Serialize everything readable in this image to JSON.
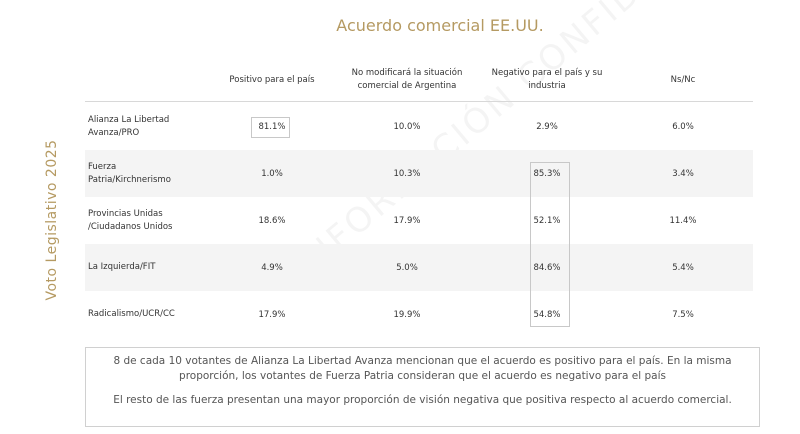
{
  "title": "Acuerdo comercial EE.UU.",
  "side_label": "Voto Legislativo 2025",
  "watermark": "INFORMACIÓN CONFIDENCIAL",
  "table": {
    "header": [
      "Positivo para el país",
      "No modificará la situación comercial de Argentina",
      "Negativo para el país y su industria",
      "Ns/Nc"
    ],
    "rows": [
      [
        "Alianza La Libertad Avanza/PRO",
        "81.1%",
        "10.0%",
        "2.9%",
        "6.0%"
      ],
      [
        "Fuerza Patria/Kirchnerismo",
        "1.0%",
        "10.3%",
        "85.3%",
        "3.4%"
      ],
      [
        "Provincias Unidas /Ciudadanos Unidos",
        "18.6%",
        "17.9%",
        "52.1%",
        "11.4%"
      ],
      [
        "La Izquierda/FIT",
        "4.9%",
        "5.0%",
        "84.6%",
        "5.4%"
      ],
      [
        "Radicalismo/UCR/CC",
        "17.9%",
        "19.9%",
        "54.8%",
        "7.5%"
      ]
    ]
  },
  "note": {
    "paragraphs": [
      "8 de cada 10 votantes de Alianza La Libertad Avanza mencionan que el acuerdo es positivo para el país. En la misma proporción, los votantes de Fuerza Patria consideran que el acuerdo es negativo para el país",
      "El resto de las fuerza presentan una mayor proporción de visión negativa que positiva respecto al acuerdo comercial."
    ]
  }
}
